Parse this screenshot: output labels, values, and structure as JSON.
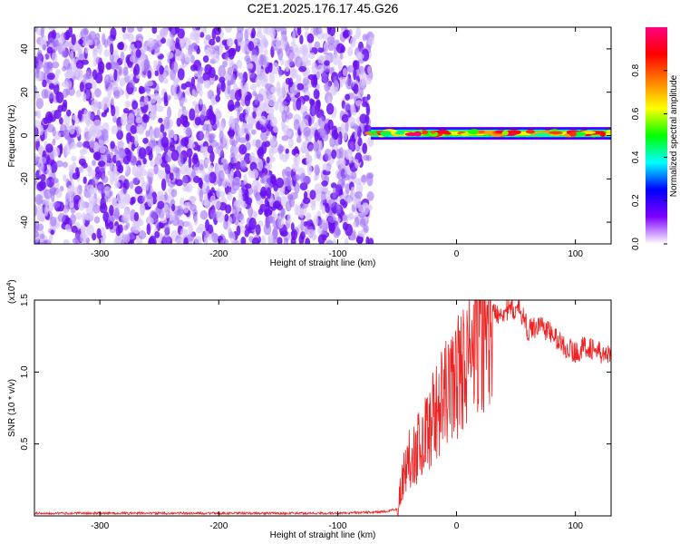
{
  "title": "C2E1.2025.176.17.45.G26",
  "chart_data": [
    {
      "type": "heatmap",
      "xlabel": "Height of straight line (km)",
      "ylabel": "Frequency (Hz)",
      "xlim": [
        -355,
        130
      ],
      "ylim": [
        -50,
        50
      ],
      "xticks": [
        -300,
        -200,
        -100,
        0,
        100
      ],
      "yticks": [
        -40,
        -20,
        0,
        20,
        40
      ],
      "colorbar": {
        "label": "Normalized spectral amplitude",
        "range": [
          0,
          1
        ],
        "ticks": [
          "0.0",
          "0.2",
          "0.4",
          "0.6",
          "0.8"
        ],
        "tick_values": [
          0.0,
          0.2,
          0.4,
          0.6,
          0.8
        ],
        "colors": [
          "#ffffff",
          "#7f00ff",
          "#0000ff",
          "#00ffff",
          "#00ff00",
          "#ffff00",
          "#ff8000",
          "#ff0000",
          "#ff0080"
        ]
      },
      "regions": [
        {
          "x_range": [
            -355,
            -72
          ],
          "freq_range": [
            -50,
            50
          ],
          "amplitude": [
            0.0,
            0.15
          ],
          "description": "noise"
        },
        {
          "x_range": [
            -72,
            130
          ],
          "freq_center": 1,
          "amplitude": [
            0.4,
            1.0
          ],
          "description": "signal"
        }
      ],
      "grid": false
    },
    {
      "type": "line",
      "xlabel": "Height of straight line (km)",
      "ylabel": "SNR (10 * v/v)",
      "y_scale_label": "(x10",
      "y_scale_exp": "4",
      "y_scale_close": ")",
      "xlim": [
        -355,
        130
      ],
      "ylim": [
        0,
        1.5
      ],
      "xticks": [
        -300,
        -200,
        -100,
        0,
        100
      ],
      "yticks": [
        "0.5",
        "1.0",
        "1.5"
      ],
      "ytick_values": [
        0.5,
        1.0,
        1.5
      ],
      "series": [
        {
          "color": "#ee2222",
          "x": [
            -355,
            -300,
            -250,
            -200,
            -150,
            -100,
            -60,
            -50,
            -45,
            -40,
            -30,
            -20,
            -10,
            0,
            10,
            20,
            30,
            40,
            50,
            55,
            60,
            70,
            80,
            90,
            100,
            110,
            120,
            130
          ],
          "y": [
            0.02,
            0.02,
            0.02,
            0.02,
            0.02,
            0.02,
            0.03,
            0.05,
            0.3,
            0.45,
            0.55,
            0.75,
            0.9,
            1.05,
            1.2,
            1.35,
            1.42,
            1.44,
            1.45,
            1.43,
            1.3,
            1.35,
            1.28,
            1.2,
            1.15,
            1.2,
            1.15,
            1.12
          ]
        }
      ],
      "grid": false
    }
  ]
}
